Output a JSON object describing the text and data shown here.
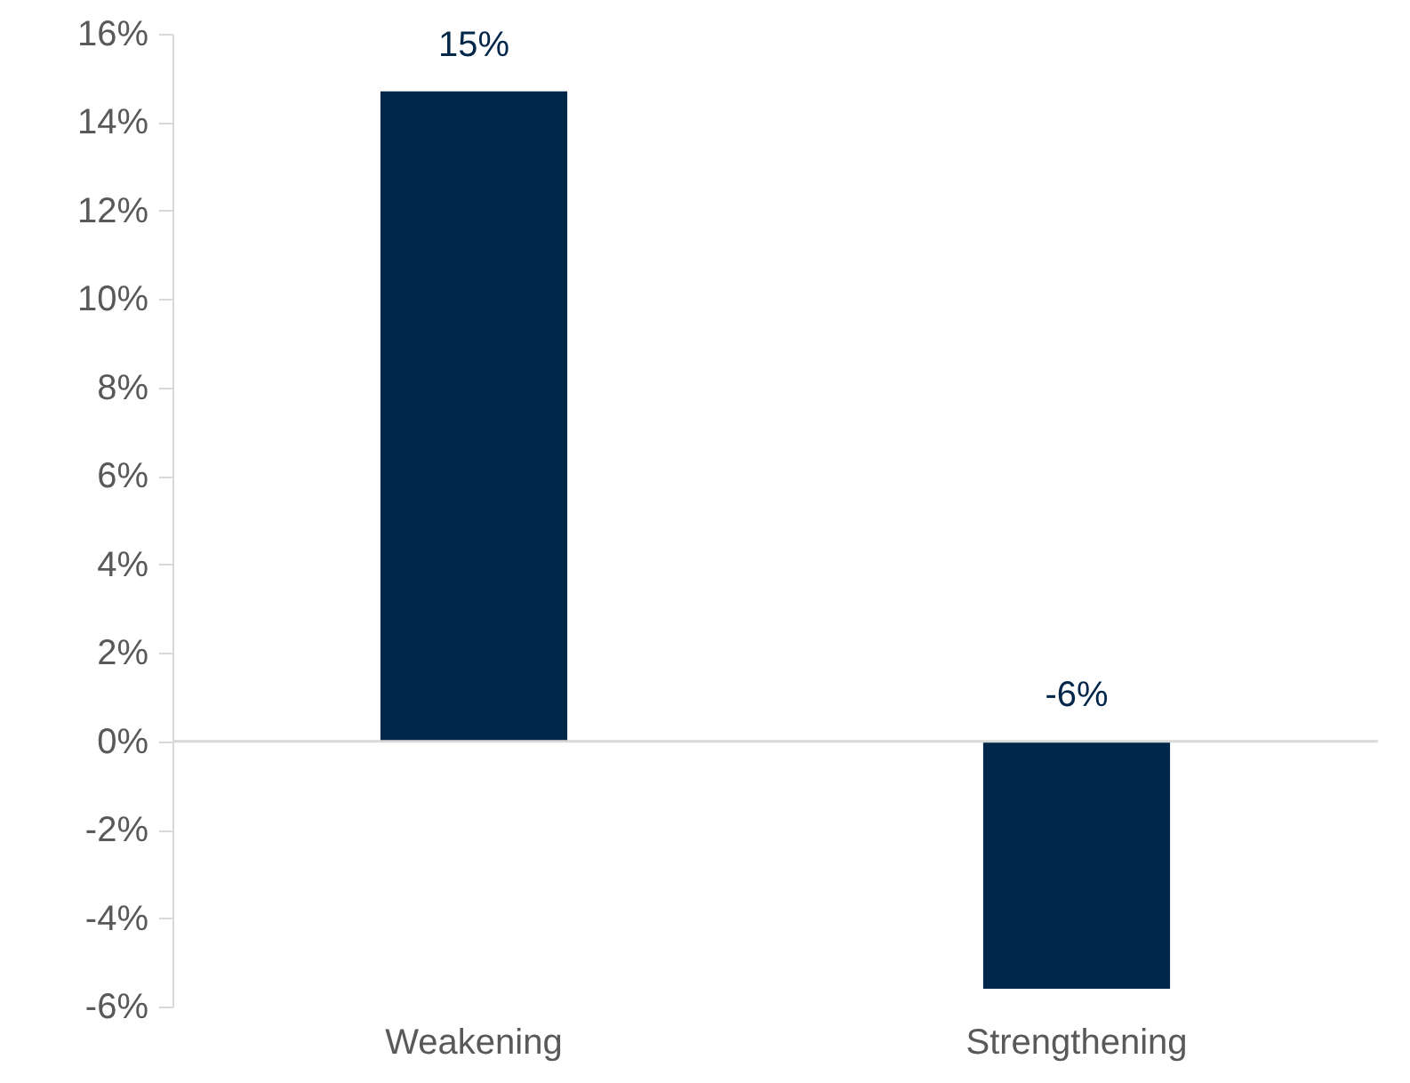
{
  "chart_data": {
    "type": "bar",
    "categories": [
      "Weakening",
      "Strengthening"
    ],
    "values": [
      14.7,
      -5.6
    ],
    "value_labels": [
      "15%",
      "-6%"
    ],
    "color": "#002749",
    "yticks": [
      {
        "value": -6,
        "label": "-6%"
      },
      {
        "value": -4,
        "label": "-4%"
      },
      {
        "value": -2,
        "label": "-2%"
      },
      {
        "value": 0,
        "label": "0%"
      },
      {
        "value": 2,
        "label": "2%"
      },
      {
        "value": 4,
        "label": "4%"
      },
      {
        "value": 6,
        "label": "6%"
      },
      {
        "value": 8,
        "label": "8%"
      },
      {
        "value": 10,
        "label": "10%"
      },
      {
        "value": 12,
        "label": "12%"
      },
      {
        "value": 14,
        "label": "14%"
      },
      {
        "value": 16,
        "label": "16%"
      }
    ],
    "ylim": [
      -6,
      16
    ]
  }
}
